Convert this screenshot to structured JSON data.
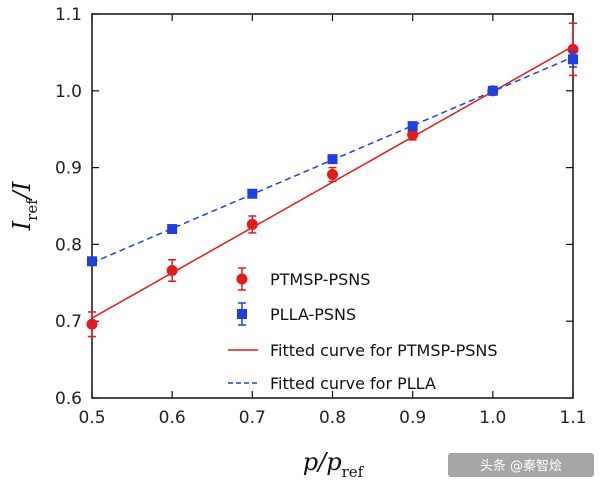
{
  "chart_data": {
    "type": "scatter",
    "xlabel_main": "p/p",
    "xlabel_sub": "ref",
    "ylabel_main": "I",
    "ylabel_sub": "ref",
    "ylabel_tail": "/I",
    "xlim": [
      0.5,
      1.1
    ],
    "ylim": [
      0.6,
      1.1
    ],
    "x_ticks": [
      0.5,
      0.6,
      0.7,
      0.8,
      0.9,
      1.0,
      1.1
    ],
    "x_tick_labels": [
      "0.5",
      "0.6",
      "0.7",
      "0.8",
      "0.9",
      "1.0",
      "1.1"
    ],
    "y_ticks": [
      0.6,
      0.7,
      0.8,
      0.9,
      1.0,
      1.1
    ],
    "y_tick_labels": [
      "0.6",
      "0.7",
      "0.8",
      "0.9",
      "1.0",
      "1.1"
    ],
    "grid": false,
    "legend_position": "center-right",
    "series": [
      {
        "name": "PTMSP-PSNS",
        "marker": "circle",
        "color": "#e41a1c",
        "x": [
          0.5,
          0.6,
          0.7,
          0.8,
          0.9,
          1.0,
          1.1
        ],
        "y": [
          0.696,
          0.766,
          0.826,
          0.891,
          0.943,
          1.0,
          1.054
        ],
        "err": [
          0.016,
          0.014,
          0.011,
          0.009,
          0.007,
          0.0,
          0.034
        ]
      },
      {
        "name": "PLLA-PSNS",
        "marker": "square",
        "color": "#1f3fe0",
        "x": [
          0.5,
          0.6,
          0.7,
          0.8,
          0.9,
          1.0,
          1.1
        ],
        "y": [
          0.778,
          0.82,
          0.866,
          0.911,
          0.954,
          1.0,
          1.041
        ],
        "err": [
          0.0,
          0.0,
          0.0,
          0.0,
          0.0,
          0.0,
          0.01
        ]
      }
    ],
    "fits": [
      {
        "name": "Fitted curve for PTMSP-PSNS",
        "style": "solid",
        "color": "#e41a1c",
        "x": [
          0.5,
          1.1
        ],
        "y": [
          0.704,
          1.058
        ]
      },
      {
        "name": "Fitted curve for PLLA",
        "style": "dashed",
        "color": "#1f3fe0",
        "x": [
          0.5,
          1.1
        ],
        "y": [
          0.776,
          1.044
        ]
      }
    ]
  },
  "watermark": "头条 @秦智烩"
}
